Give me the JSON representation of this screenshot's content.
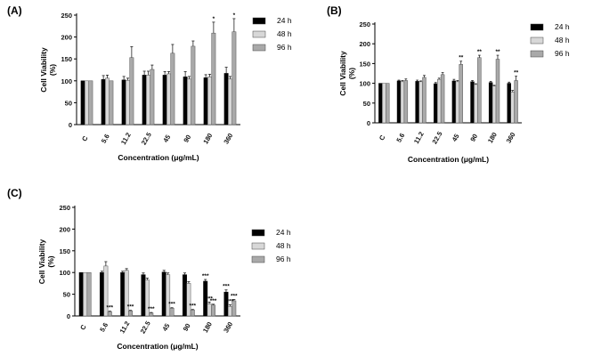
{
  "chart_data": [
    {
      "type": "bar",
      "panel_label": "(A)",
      "categories": [
        "C",
        "5.6",
        "11.2",
        "22.5",
        "45",
        "90",
        "180",
        "360"
      ],
      "series": [
        {
          "name": "24 h",
          "color": "#000000",
          "values": [
            100,
            103,
            102,
            113,
            113,
            109,
            107,
            117
          ],
          "errors": [
            0,
            9,
            8,
            9,
            8,
            12,
            7,
            14
          ]
        },
        {
          "name": "48 h",
          "color": "#d8d8d8",
          "values": [
            100,
            106,
            101,
            113,
            116,
            104,
            109,
            104
          ],
          "errors": [
            0,
            7,
            5,
            9,
            5,
            6,
            6,
            6
          ]
        },
        {
          "name": "96 h",
          "color": "#a9a9a9",
          "values": [
            100,
            100,
            153,
            126,
            163,
            179,
            209,
            212
          ],
          "errors": [
            0,
            0,
            25,
            10,
            20,
            12,
            25,
            30
          ]
        }
      ],
      "significance": [
        {
          "category": "180",
          "series": "96 h",
          "label": "*"
        },
        {
          "category": "360",
          "series": "96 h",
          "label": "*"
        }
      ],
      "xlabel": "Concentration (μg/mL)",
      "ylabel_lines": [
        "Cell Viability",
        "(%)"
      ],
      "ylim": [
        0,
        250
      ],
      "yticks": [
        0,
        50,
        100,
        150,
        200,
        250
      ],
      "legend_position": "right"
    },
    {
      "type": "bar",
      "panel_label": "(B)",
      "categories": [
        "C",
        "5.6",
        "11.2",
        "22.5",
        "45",
        "90",
        "180",
        "360"
      ],
      "series": [
        {
          "name": "24 h",
          "color": "#000000",
          "values": [
            100,
            106,
            105,
            99,
            106,
            104,
            102,
            100
          ],
          "errors": [
            0,
            2,
            3,
            3,
            4,
            3,
            3,
            3
          ]
        },
        {
          "name": "48 h",
          "color": "#d8d8d8",
          "values": [
            100,
            104,
            104,
            110,
            104,
            97,
            93,
            78
          ],
          "errors": [
            0,
            3,
            2,
            3,
            3,
            2,
            2,
            4
          ]
        },
        {
          "name": "96 h",
          "color": "#a9a9a9",
          "values": [
            100,
            107,
            115,
            122,
            148,
            165,
            161,
            107
          ],
          "errors": [
            0,
            4,
            5,
            5,
            8,
            6,
            10,
            11
          ]
        }
      ],
      "significance": [
        {
          "category": "45",
          "series": "96 h",
          "label": "**"
        },
        {
          "category": "90",
          "series": "96 h",
          "label": "**"
        },
        {
          "category": "180",
          "series": "96 h",
          "label": "**"
        },
        {
          "category": "360",
          "series": "96 h",
          "label": "**"
        }
      ],
      "xlabel": "Concentration (μg/mL)",
      "ylabel_lines": [
        "Cell Viability",
        "(%)"
      ],
      "ylim": [
        0,
        250
      ],
      "yticks": [
        0,
        50,
        100,
        150,
        200,
        250
      ],
      "legend_position": "right"
    },
    {
      "type": "bar",
      "panel_label": "(C)",
      "categories": [
        "C",
        "5.6",
        "11.2",
        "22.5",
        "45",
        "90",
        "180",
        "360"
      ],
      "series": [
        {
          "name": "24 h",
          "color": "#000000",
          "values": [
            100,
            100,
            100,
            95,
            101,
            95,
            80,
            55
          ],
          "errors": [
            0,
            3,
            3,
            4,
            4,
            4,
            4,
            5
          ]
        },
        {
          "name": "48 h",
          "color": "#d8d8d8",
          "values": [
            100,
            115,
            105,
            83,
            95,
            75,
            28,
            22
          ],
          "errors": [
            0,
            10,
            4,
            4,
            4,
            4,
            4,
            4
          ]
        },
        {
          "name": "96 h",
          "color": "#a9a9a9",
          "values": [
            100,
            10,
            12,
            7,
            18,
            14,
            25,
            35
          ],
          "errors": [
            0,
            1,
            1,
            1,
            1,
            1,
            2,
            3
          ]
        }
      ],
      "significance": [
        {
          "category": "5.6",
          "series": "96 h",
          "label": "***"
        },
        {
          "category": "11.2",
          "series": "96 h",
          "label": "***"
        },
        {
          "category": "22.5",
          "series": "96 h",
          "label": "***"
        },
        {
          "category": "45",
          "series": "96 h",
          "label": "***"
        },
        {
          "category": "90",
          "series": "96 h",
          "label": "***"
        },
        {
          "category": "180",
          "series": "24 h",
          "label": "***"
        },
        {
          "category": "180",
          "series": "48 h",
          "label": "***"
        },
        {
          "category": "180",
          "series": "96 h",
          "label": "***"
        },
        {
          "category": "360",
          "series": "24 h",
          "label": "***"
        },
        {
          "category": "360",
          "series": "48 h",
          "label": "***"
        },
        {
          "category": "360",
          "series": "96 h",
          "label": "***"
        }
      ],
      "xlabel": "Concentration (μg/mL)",
      "ylabel_lines": [
        "Cell Viability",
        "(%)"
      ],
      "ylim": [
        0,
        250
      ],
      "yticks": [
        0,
        50,
        100,
        150,
        200,
        250
      ],
      "legend_position": "right"
    }
  ]
}
